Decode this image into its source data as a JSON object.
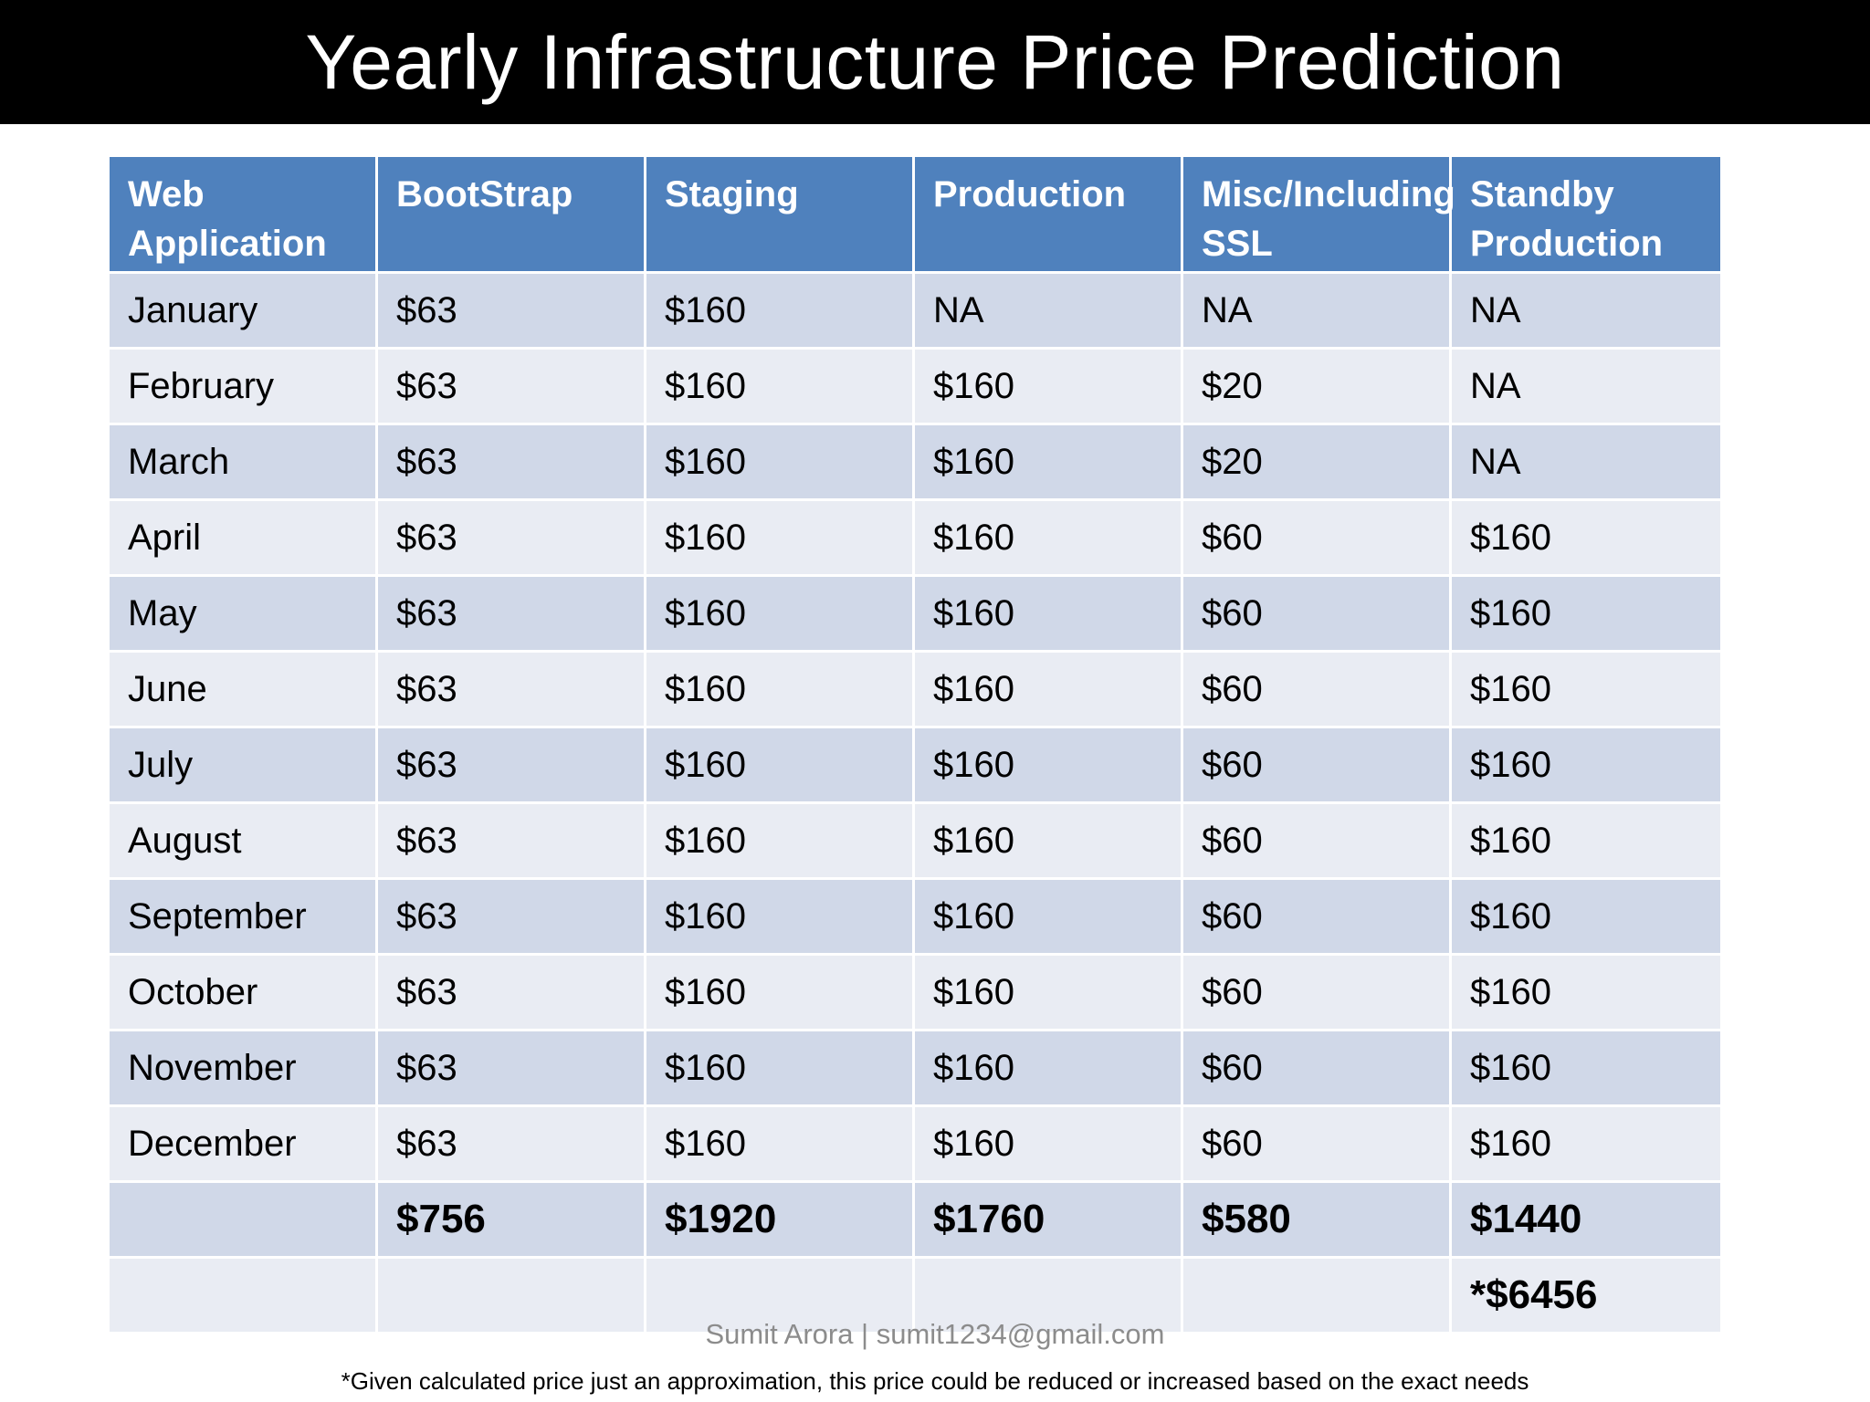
{
  "title": "Yearly Infrastructure Price Prediction",
  "table": {
    "headers": [
      "Web Application",
      "BootStrap",
      "Staging",
      "Production",
      "Misc/Including SSL",
      "Standby Production"
    ],
    "rows": [
      [
        "January",
        "$63",
        "$160",
        "NA",
        "NA",
        "NA"
      ],
      [
        "February",
        "$63",
        "$160",
        "$160",
        "$20",
        "NA"
      ],
      [
        "March",
        "$63",
        "$160",
        "$160",
        "$20",
        "NA"
      ],
      [
        "April",
        "$63",
        "$160",
        "$160",
        "$60",
        "$160"
      ],
      [
        "May",
        "$63",
        "$160",
        "$160",
        "$60",
        "$160"
      ],
      [
        "June",
        "$63",
        "$160",
        "$160",
        "$60",
        "$160"
      ],
      [
        "July",
        "$63",
        "$160",
        "$160",
        "$60",
        "$160"
      ],
      [
        "August",
        "$63",
        "$160",
        "$160",
        "$60",
        "$160"
      ],
      [
        "September",
        "$63",
        "$160",
        "$160",
        "$60",
        "$160"
      ],
      [
        "October",
        "$63",
        "$160",
        "$160",
        "$60",
        "$160"
      ],
      [
        "November",
        "$63",
        "$160",
        "$160",
        "$60",
        "$160"
      ],
      [
        "December",
        "$63",
        "$160",
        "$160",
        "$60",
        "$160"
      ]
    ],
    "totals": [
      "",
      "$756",
      "$1920",
      "$1760",
      "$580",
      "$1440"
    ],
    "grand_total": [
      "",
      "",
      "",
      "",
      "",
      "*$6456"
    ]
  },
  "author": "Sumit Arora | sumit1234@gmail.com",
  "footnote": "*Given calculated price just an approximation, this price could be reduced or increased based on the exact needs"
}
